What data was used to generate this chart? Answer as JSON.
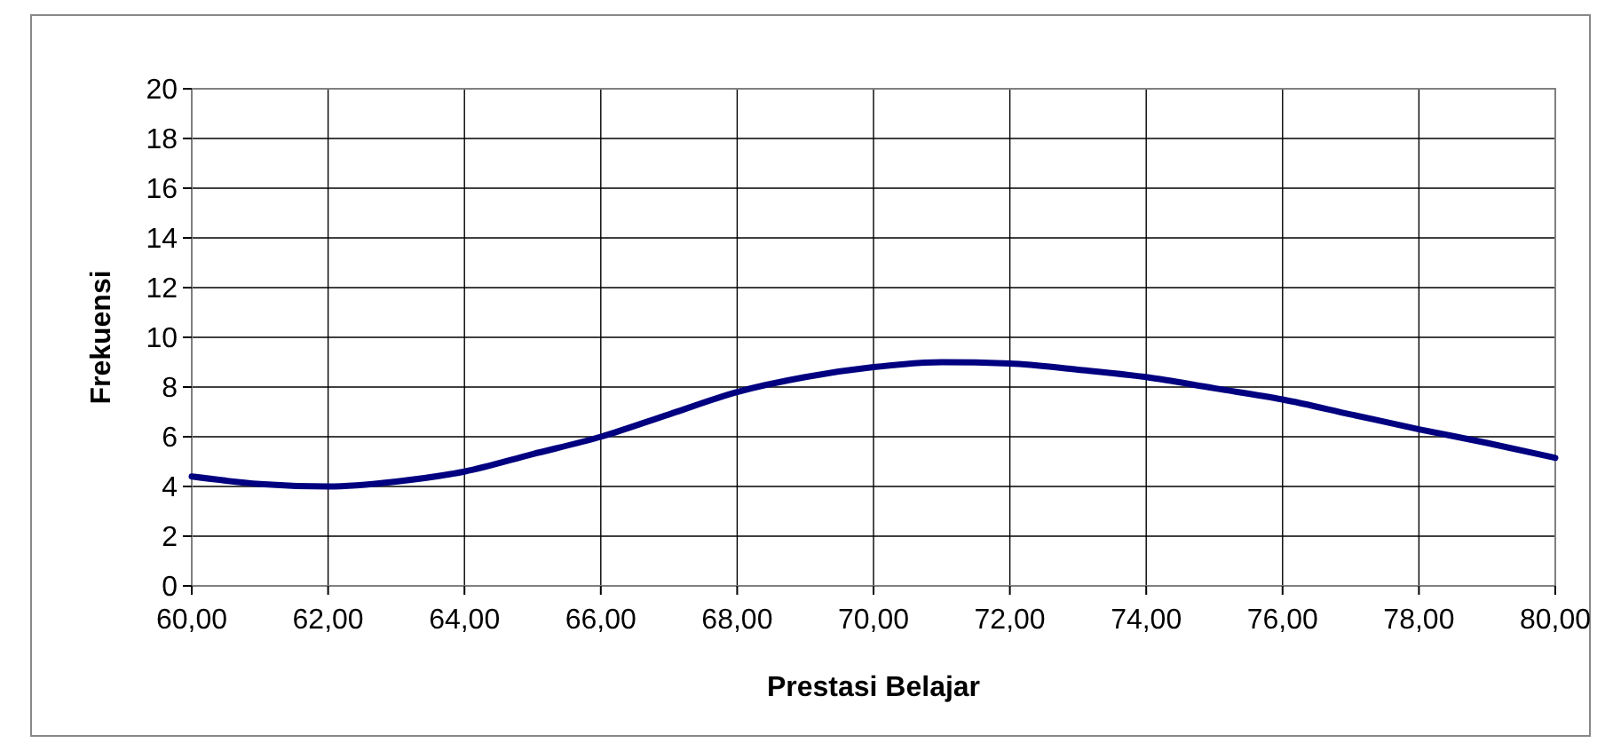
{
  "chart_data": {
    "type": "line",
    "xlabel": "Prestasi Belajar",
    "ylabel": "Frekuensi",
    "x": [
      60,
      61,
      62,
      63,
      64,
      65,
      66,
      67,
      68,
      69,
      70,
      71,
      72,
      73,
      74,
      75,
      76,
      77,
      78,
      79,
      80
    ],
    "series": [
      {
        "color": "#000080",
        "values": [
          4.4,
          4.1,
          4.0,
          4.2,
          4.6,
          5.3,
          6.0,
          6.9,
          7.8,
          8.4,
          8.8,
          9.0,
          8.95,
          8.7,
          8.4,
          7.95,
          7.5,
          6.9,
          6.3,
          5.75,
          5.15
        ]
      }
    ],
    "xlim": [
      60,
      80
    ],
    "xticks": [
      {
        "value": 60,
        "label": "60,00"
      },
      {
        "value": 62,
        "label": "62,00"
      },
      {
        "value": 64,
        "label": "64,00"
      },
      {
        "value": 66,
        "label": "66,00"
      },
      {
        "value": 68,
        "label": "68,00"
      },
      {
        "value": 70,
        "label": "70,00"
      },
      {
        "value": 72,
        "label": "72,00"
      },
      {
        "value": 74,
        "label": "74,00"
      },
      {
        "value": 76,
        "label": "76,00"
      },
      {
        "value": 78,
        "label": "78,00"
      },
      {
        "value": 80,
        "label": "80,00"
      }
    ],
    "ylim": [
      0,
      20
    ],
    "yticks": [
      0,
      2,
      4,
      6,
      8,
      10,
      12,
      14,
      16,
      18,
      20
    ],
    "grid": true,
    "marker": "none",
    "line_style": "solid"
  }
}
